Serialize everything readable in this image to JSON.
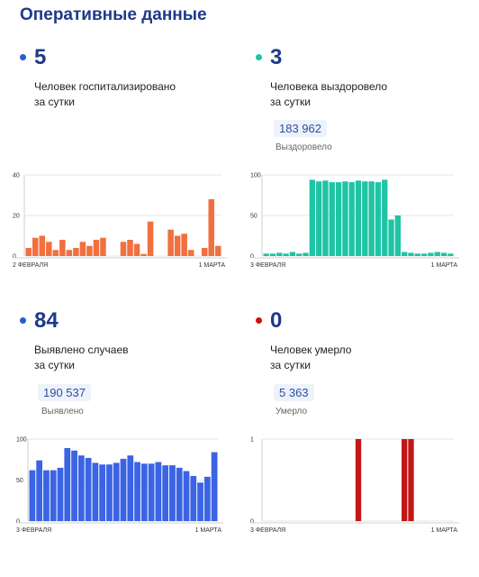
{
  "header": {
    "title": "Оперативные данные"
  },
  "panels": [
    {
      "color": "#2a5bd7",
      "value": "5",
      "line1": "Человек госпитализировано",
      "line2": "за сутки",
      "total": "",
      "total_label": ""
    },
    {
      "color": "#1fc4a4",
      "value": "3",
      "line1": "Человека выздоровело",
      "line2": "за сутки",
      "total": "183 962",
      "total_label": "Выздоровело"
    },
    {
      "color": "#2a5bd7",
      "value": "84",
      "line1": "Выявлено случаев",
      "line2": "за сутки",
      "total": "190 537",
      "total_label": "Выявлено"
    },
    {
      "color": "#cc1111",
      "value": "0",
      "line1": "Человек умерло",
      "line2": "за сутки",
      "total": "5 363",
      "total_label": "Умерло"
    }
  ],
  "chart_data": [
    {
      "type": "bar",
      "color": "#f07040",
      "x_start": "2 ФЕВРАЛЯ",
      "x_end": "1 МАРТА",
      "yticks": [
        0,
        20,
        40
      ],
      "ylim": [
        0,
        40
      ],
      "values": [
        4,
        9,
        10,
        7,
        3,
        8,
        3,
        4,
        7,
        5,
        8,
        9,
        0,
        0,
        7,
        8,
        6,
        1,
        17,
        0,
        0,
        13,
        10,
        11,
        3,
        0,
        4,
        28,
        5
      ]
    },
    {
      "type": "bar",
      "color": "#1fc4a4",
      "x_start": "3 ФЕВРАЛЯ",
      "x_end": "1 МАРТА",
      "yticks": [
        0,
        50,
        100
      ],
      "ylim": [
        0,
        100
      ],
      "values": [
        3,
        3,
        4,
        3,
        5,
        3,
        4,
        94,
        92,
        93,
        91,
        91,
        92,
        91,
        93,
        92,
        92,
        91,
        94,
        45,
        50,
        5,
        4,
        3,
        3,
        4,
        5,
        4,
        3
      ]
    },
    {
      "type": "bar",
      "color": "#3b64e4",
      "x_start": "3 ФЕВРАЛЯ",
      "x_end": "1 МАРТА",
      "yticks": [
        0,
        50,
        100
      ],
      "ylim": [
        0,
        100
      ],
      "values": [
        62,
        74,
        62,
        62,
        65,
        89,
        86,
        80,
        77,
        71,
        69,
        69,
        71,
        76,
        80,
        72,
        70,
        70,
        72,
        68,
        68,
        65,
        61,
        55,
        47,
        54,
        84
      ]
    },
    {
      "type": "bar",
      "color": "#c21717",
      "x_start": "3 ФЕВРАЛЯ",
      "x_end": "1 МАРТА",
      "yticks": [
        0,
        1
      ],
      "ylim": [
        0,
        1
      ],
      "values": [
        0,
        0,
        0,
        0,
        0,
        0,
        0,
        0,
        0,
        0,
        0,
        0,
        0,
        0,
        1,
        0,
        0,
        0,
        0,
        0,
        0,
        1,
        1,
        0,
        0,
        0,
        0,
        0,
        0
      ]
    }
  ]
}
